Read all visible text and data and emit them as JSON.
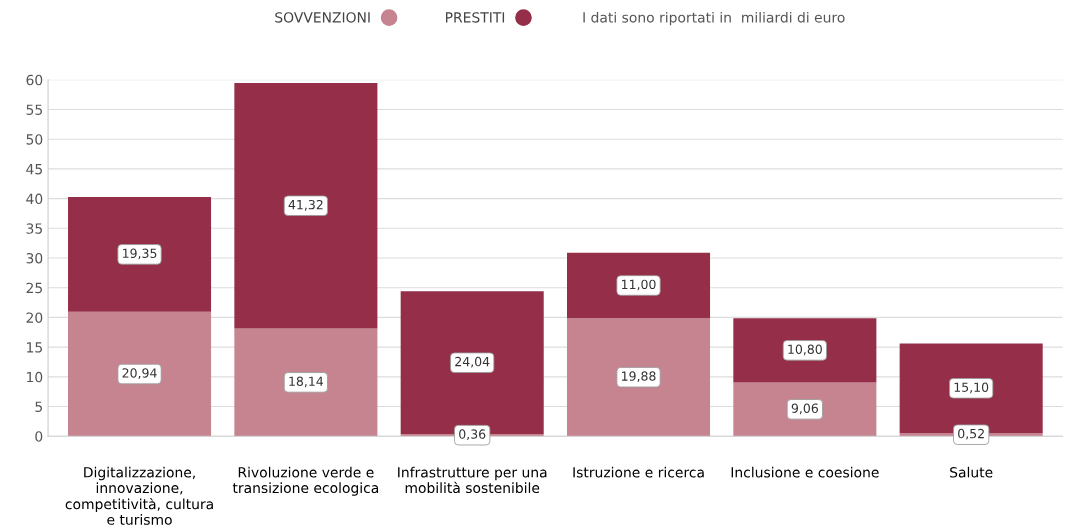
{
  "chart_data": {
    "type": "bar",
    "stacked": true,
    "categories": [
      "Digitalizzazione,\ninnovazione,\ncompetitività, cultura\ne turismo",
      "Rivoluzione verde e\ntransizione ecologica",
      "Infrastrutture per una\nmobilità sostenibile",
      "Istruzione e ricerca",
      "Inclusione e coesione",
      "Salute"
    ],
    "series": [
      {
        "name": "SOVVENZIONI",
        "color": "#c68390",
        "values": [
          20.94,
          18.14,
          0.36,
          19.88,
          9.06,
          0.52
        ],
        "value_labels": [
          "20,94",
          "18,14",
          "0,36",
          "19,88",
          "9,06",
          "0,52"
        ]
      },
      {
        "name": "PRESTITI",
        "color": "#952e48",
        "values": [
          19.35,
          41.32,
          24.04,
          11.0,
          10.8,
          15.1
        ],
        "value_labels": [
          "19,35",
          "41,32",
          "24,04",
          "11,00",
          "10,80",
          "15,10"
        ]
      }
    ],
    "ylim": [
      0,
      60
    ],
    "yticks": [
      0,
      5,
      10,
      15,
      20,
      25,
      30,
      35,
      40,
      45,
      50,
      55,
      60
    ],
    "grid": "y",
    "legend": "top",
    "annotations": [
      "I dati sono riportati in  miliardi di euro"
    ]
  }
}
